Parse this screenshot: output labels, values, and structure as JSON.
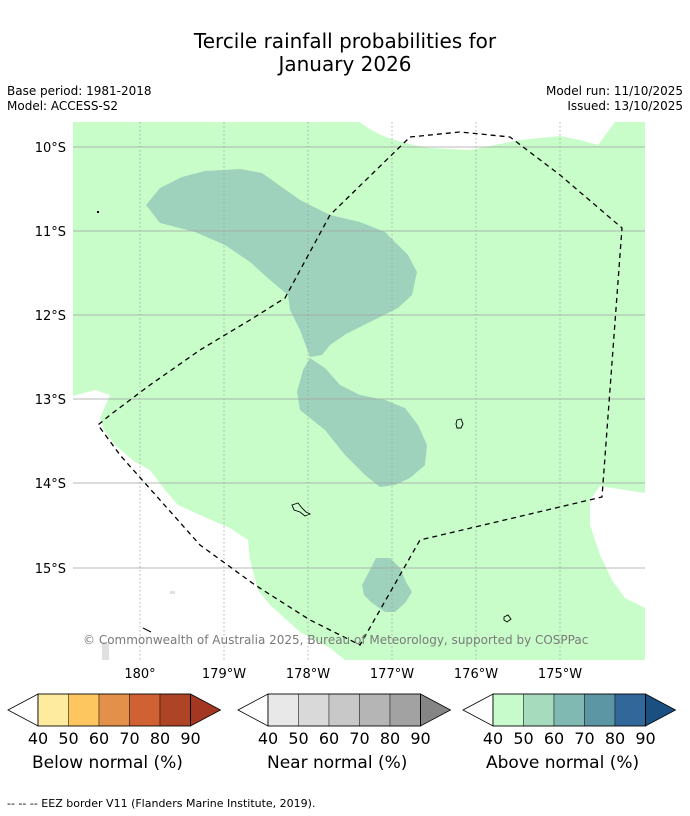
{
  "title_line1": "Tercile rainfall probabilities for",
  "title_line2": "January 2026",
  "base_period": "Base period: 1981-2018",
  "model": "Model: ACCESS-S2",
  "model_run": "Model run: 11/10/2025",
  "issued": "Issued: 13/10/2025",
  "map": {
    "lat_labels": [
      "10°S",
      "11°S",
      "12°S",
      "13°S",
      "14°S",
      "15°S"
    ],
    "lon_labels": [
      "180°",
      "179°W",
      "178°W",
      "177°W",
      "176°W",
      "175°W"
    ],
    "copyright": "© Commonwealth of Australia 2025, Bureau of Meteorology, supported by COSPPac"
  },
  "legends": [
    {
      "name": "Below normal (%)",
      "ticks": [
        "40",
        "50",
        "60",
        "70",
        "80",
        "90"
      ],
      "colors": [
        "#ffeb9f",
        "#fdc65f",
        "#e3904a",
        "#cf6133",
        "#ad4426",
        "#a33722"
      ]
    },
    {
      "name": "Near normal (%)",
      "ticks": [
        "40",
        "50",
        "60",
        "70",
        "80",
        "90"
      ],
      "colors": [
        "#e8e8e8",
        "#d9d9d9",
        "#c8c8c8",
        "#b5b5b5",
        "#a2a2a2",
        "#858585"
      ]
    },
    {
      "name": "Above normal (%)",
      "ticks": [
        "40",
        "50",
        "60",
        "70",
        "80",
        "90"
      ],
      "colors": [
        "#c8fbcb",
        "#a7dbbd",
        "#80b8b2",
        "#5c95a3",
        "#316799",
        "#1a4f82"
      ]
    }
  ],
  "colors": {
    "above_40": "#c8fdc9",
    "above_50": "#9ed2bc",
    "border": "#000000",
    "grid": "#a0a0a0"
  },
  "footnote": "-- -- -- EEZ border V11 (Flanders Marine Institute, 2019)."
}
